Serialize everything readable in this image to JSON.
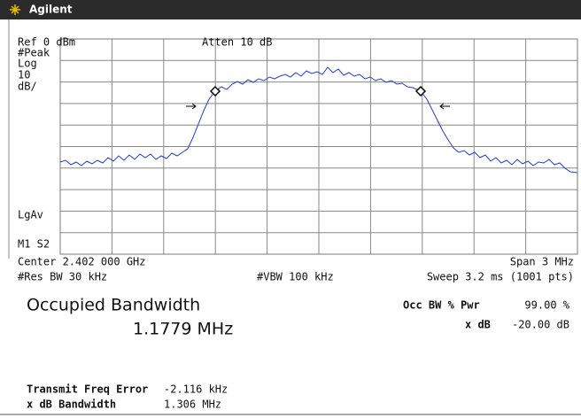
{
  "header": {
    "brand": "Agilent"
  },
  "display": {
    "ref_level": "Ref 0 dBm",
    "atten": "Atten 10 dB",
    "detector": "#Peak",
    "scale_type": "Log",
    "scale_value": "10",
    "scale_unit": "dB/",
    "average": "LgAv",
    "marker_info": "M1 S2",
    "center": "Center 2.402 000 GHz",
    "span": "Span 3 MHz",
    "res_bw": "#Res BW 30 kHz",
    "vbw": "#VBW 100 kHz",
    "sweep": "Sweep 3.2 ms (1001 pts)"
  },
  "results": {
    "title": "Occupied Bandwidth",
    "value": "1.1779 MHz",
    "occ_bw_label": "Occ BW % Pwr",
    "occ_bw_value": "99.00 %",
    "xdb_label": "x dB",
    "xdb_value": "-20.00 dB",
    "freq_error_label": "Transmit Freq Error",
    "freq_error_value": "-2.116 kHz",
    "xdb_bw_label": "x dB Bandwidth",
    "xdb_bw_value": "1.306 MHz"
  }
}
